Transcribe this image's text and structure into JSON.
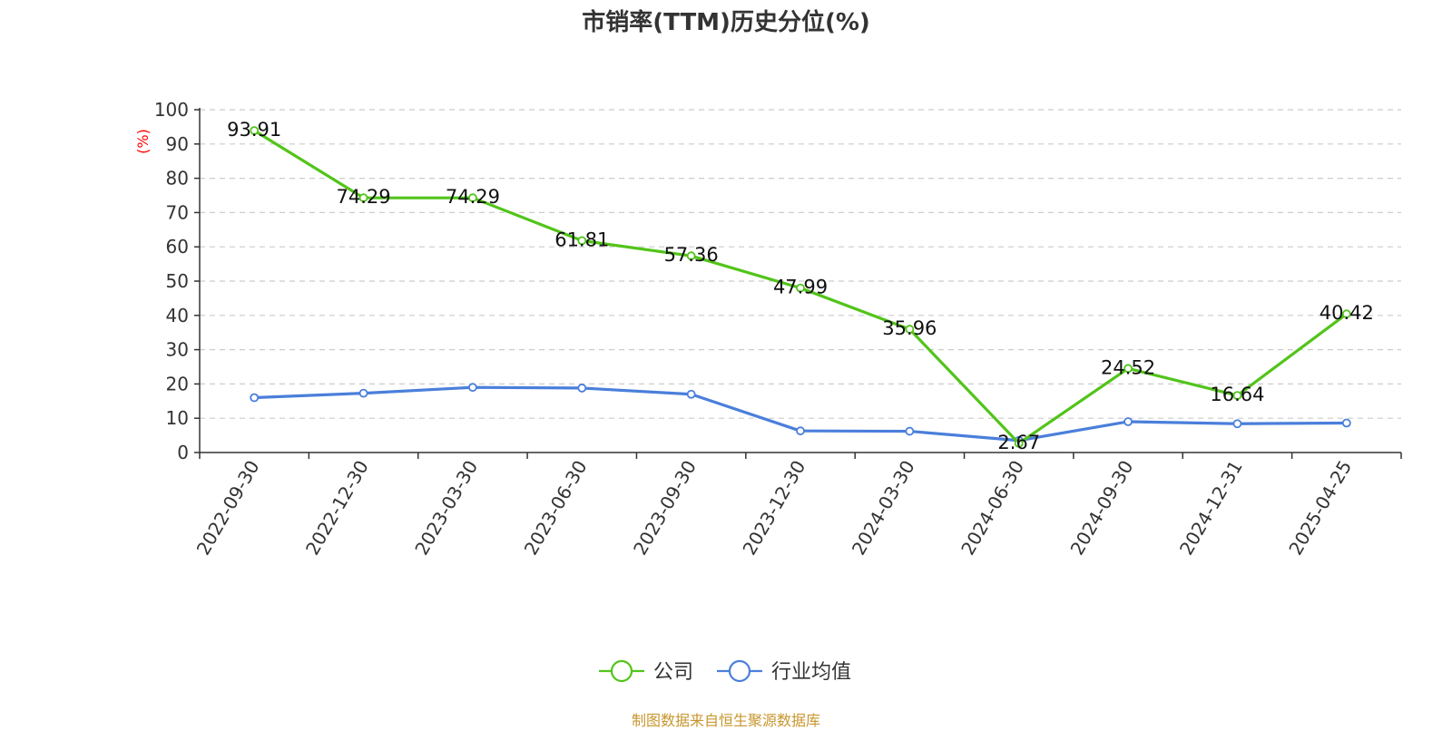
{
  "title": "市销率(TTM)历史分位(%)",
  "source": "制图数据来自恒生聚源数据库",
  "chart_data": {
    "type": "line",
    "title": "市销率(TTM)历史分位(%)",
    "ylabel": "(%)",
    "xlabel": "",
    "ylim": [
      0,
      100
    ],
    "yticks": [
      0,
      10,
      20,
      30,
      40,
      50,
      60,
      70,
      80,
      90,
      100
    ],
    "grid": true,
    "legend_position": "bottom-center",
    "categories": [
      "2022-09-30",
      "2022-12-30",
      "2023-03-30",
      "2023-06-30",
      "2023-09-30",
      "2023-12-30",
      "2024-03-30",
      "2024-06-30",
      "2024-09-30",
      "2024-12-31",
      "2025-04-25"
    ],
    "series": [
      {
        "name": "公司",
        "color": "#52c41a",
        "values": [
          93.91,
          74.29,
          74.29,
          61.81,
          57.36,
          47.99,
          35.96,
          2.67,
          24.52,
          16.64,
          40.42
        ],
        "labels": [
          "93.91",
          "74.29",
          "74.29",
          "61.81",
          "57.36",
          "47.99",
          "35.96",
          "2.67",
          "24.52",
          "16.64",
          "40.42"
        ]
      },
      {
        "name": "行业均值",
        "color": "#4a7fdb",
        "values": [
          16.0,
          17.3,
          19.0,
          18.8,
          17.0,
          6.3,
          6.2,
          3.5,
          9.0,
          8.4,
          8.6
        ]
      }
    ]
  }
}
